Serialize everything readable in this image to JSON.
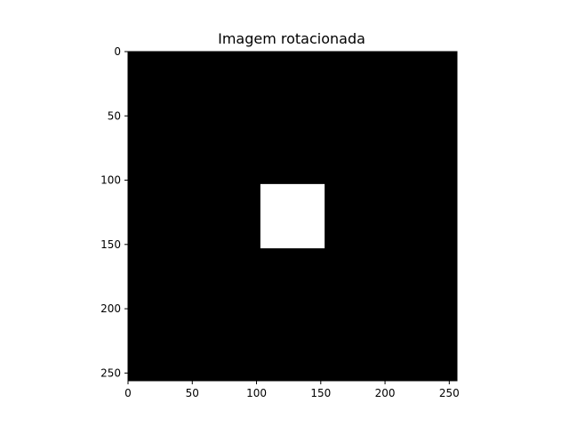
{
  "chart_data": {
    "type": "heatmap",
    "title": "Imagem rotacionada",
    "xlabel": "",
    "ylabel": "",
    "xlim": [
      0,
      256
    ],
    "ylim": [
      256,
      0
    ],
    "y_inverted": true,
    "image_shape": [
      256,
      256
    ],
    "colormap": "gray",
    "background_value": 0,
    "background_color": "#000000",
    "foreground_color": "#ffffff",
    "regions": [
      {
        "label": "white-square",
        "value": 1,
        "x_range": [
          103,
          153
        ],
        "y_range": [
          103,
          153
        ]
      }
    ],
    "x_ticks": [
      0,
      50,
      100,
      150,
      200,
      250
    ],
    "y_ticks": [
      0,
      50,
      100,
      150,
      200,
      250
    ],
    "x_tick_labels": [
      "0",
      "50",
      "100",
      "150",
      "200",
      "250"
    ],
    "y_tick_labels": [
      "0",
      "50",
      "100",
      "150",
      "200",
      "250"
    ],
    "grid": false,
    "legend": "none"
  }
}
